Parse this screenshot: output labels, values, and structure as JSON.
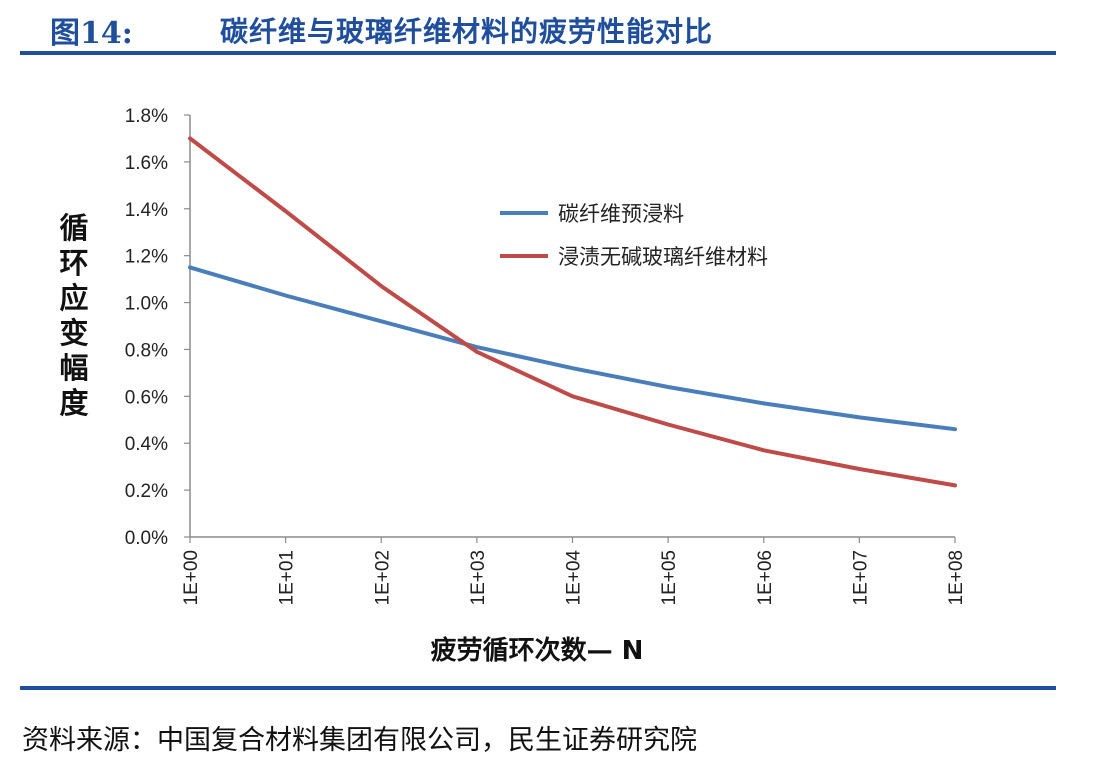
{
  "figure": {
    "number": "图14:",
    "title": "碳纤维与玻璃纤维材料的疲劳性能对比",
    "source": "资料来源：中国复合材料集团有限公司，民生证券研究院"
  },
  "chart_data": {
    "type": "line",
    "xlabel": "疲劳循环次数— N",
    "ylabel": "循环应变幅度",
    "x_scale": "log",
    "x": [
      1,
      10,
      100,
      1000,
      10000,
      100000,
      1000000,
      10000000,
      100000000
    ],
    "x_tick_labels": [
      "1E+00",
      "1E+01",
      "1E+02",
      "1E+03",
      "1E+04",
      "1E+05",
      "1E+06",
      "1E+07",
      "1E+08"
    ],
    "y_ticks": [
      0,
      0.2,
      0.4,
      0.6,
      0.8,
      1.0,
      1.2,
      1.4,
      1.6,
      1.8
    ],
    "y_tick_labels": [
      "0.0%",
      "0.2%",
      "0.4%",
      "0.6%",
      "0.8%",
      "1.0%",
      "1.2%",
      "1.4%",
      "1.6%",
      "1.8%"
    ],
    "ylim": [
      0,
      1.8
    ],
    "y_unit": "%",
    "grid": false,
    "legend_position": "top-right",
    "series": [
      {
        "name": "碳纤维预浸料",
        "color": "#4a7ebb",
        "values": [
          1.15,
          1.03,
          0.92,
          0.81,
          0.72,
          0.64,
          0.57,
          0.51,
          0.46
        ]
      },
      {
        "name": "浸渍无碱玻璃纤维材料",
        "color": "#be4b48",
        "values": [
          1.7,
          1.39,
          1.07,
          0.79,
          0.6,
          0.48,
          0.37,
          0.29,
          0.22
        ]
      }
    ]
  }
}
